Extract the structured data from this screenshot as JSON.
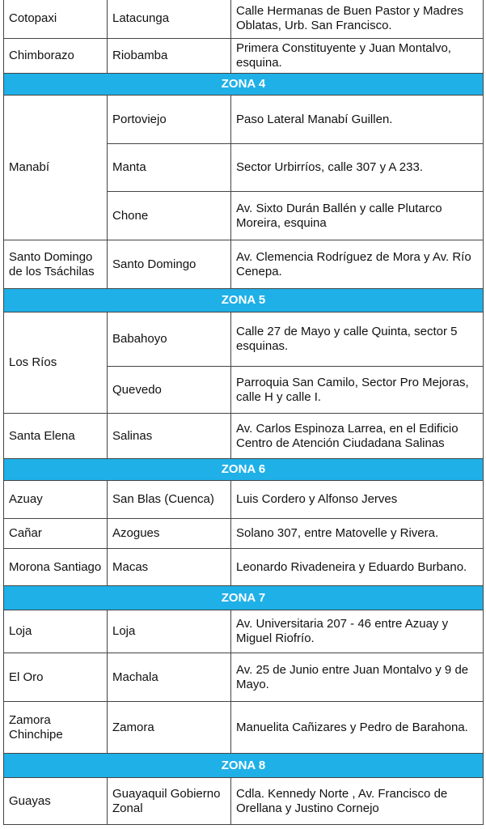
{
  "colors": {
    "zone_header": "#1fb0e8",
    "border": "#444444"
  },
  "rows": [
    {
      "type": "entry",
      "province": "Cotopaxi",
      "cities": [
        {
          "city": "Latacunga",
          "address": "Calle Hermanas de Buen Pastor y Madres Oblatas, Urb. San Francisco."
        }
      ]
    },
    {
      "type": "entry",
      "province": "Chimborazo",
      "cities": [
        {
          "city": "Riobamba",
          "address": "Primera Constituyente y Juan Montalvo, esquina."
        }
      ]
    },
    {
      "type": "zone",
      "label": "ZONA 4"
    },
    {
      "type": "entry",
      "province": "Manabí",
      "cities": [
        {
          "city": "Portoviejo",
          "address": "Paso Lateral Manabí Guillen."
        },
        {
          "city": "Manta",
          "address": "Sector Urbirríos, calle 307 y A 233."
        },
        {
          "city": "Chone",
          "address": "Av. Sixto Durán Ballén y calle Plutarco Moreira, esquina"
        }
      ]
    },
    {
      "type": "entry",
      "province": "Santo Domingo de los Tsáchilas",
      "cities": [
        {
          "city": "Santo Domingo",
          "address": "Av. Clemencia Rodríguez de Mora y Av. Río Cenepa."
        }
      ]
    },
    {
      "type": "zone",
      "label": "ZONA 5"
    },
    {
      "type": "entry",
      "province": "Los Ríos",
      "cities": [
        {
          "city": "Babahoyo",
          "address": "Calle 27 de Mayo y calle Quinta, sector 5 esquinas."
        },
        {
          "city": "Quevedo",
          "address": "Parroquia San Camilo, Sector Pro Mejoras, calle H y calle I."
        }
      ]
    },
    {
      "type": "entry",
      "province": "Santa Elena",
      "cities": [
        {
          "city": "Salinas",
          "address": "Av. Carlos Espinoza Larrea, en el Edificio Centro de Atención Ciudadana Salinas"
        }
      ]
    },
    {
      "type": "zone",
      "label": "ZONA 6"
    },
    {
      "type": "entry",
      "province": "Azuay",
      "cities": [
        {
          "city": "San Blas (Cuenca)",
          "address": "Luis Cordero y Alfonso Jerves"
        }
      ]
    },
    {
      "type": "entry",
      "province": "Cañar",
      "cities": [
        {
          "city": "Azogues",
          "address": "Solano 307, entre Matovelle y Rivera."
        }
      ]
    },
    {
      "type": "entry",
      "province": "Morona Santiago",
      "cities": [
        {
          "city": "Macas",
          "address": "Leonardo Rivadeneira y Eduardo Burbano."
        }
      ]
    },
    {
      "type": "zone",
      "label": "ZONA 7"
    },
    {
      "type": "entry",
      "province": "Loja",
      "cities": [
        {
          "city": "Loja",
          "address": "Av. Universitaria 207 - 46 entre Azuay y Miguel Riofrío."
        }
      ]
    },
    {
      "type": "entry",
      "province": "El Oro",
      "cities": [
        {
          "city": "Machala",
          "address": "Av. 25 de Junio entre Juan Montalvo y 9 de Mayo."
        }
      ]
    },
    {
      "type": "entry",
      "province": "Zamora Chinchipe",
      "cities": [
        {
          "city": "Zamora",
          "address": "Manuelita Cañizares y Pedro de Barahona."
        }
      ]
    },
    {
      "type": "zone",
      "label": "ZONA 8"
    },
    {
      "type": "entry",
      "province": "Guayas",
      "cities": [
        {
          "city": "Guayaquil Gobierno Zonal",
          "address": "Cdla. Kennedy Norte , Av. Francisco de Orellana y Justino Cornejo"
        }
      ]
    }
  ]
}
